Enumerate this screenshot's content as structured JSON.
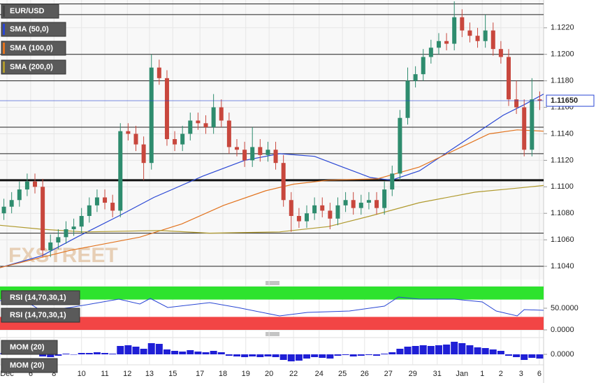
{
  "chart_data": {
    "type": "candlestick",
    "series": [
      {
        "name": "EUR/USD",
        "up_color": "#2e8c6e",
        "down_color": "#c8473d",
        "x": [
          1,
          3,
          5,
          7,
          9,
          11,
          13,
          15,
          17,
          19,
          21,
          23,
          25,
          27,
          29,
          31,
          33,
          35,
          37,
          39,
          41,
          43,
          45,
          47,
          49,
          51,
          53,
          55,
          57,
          59,
          61,
          63,
          65,
          67,
          69,
          71,
          73,
          75,
          77,
          79,
          81,
          83,
          85,
          87,
          89,
          91,
          93,
          95,
          97,
          99,
          101,
          103,
          105,
          107,
          109,
          111,
          113,
          115,
          117,
          119,
          121,
          123,
          125,
          127,
          129,
          131,
          133,
          135,
          137,
          139
        ],
        "open": [
          1.108,
          1.1085,
          1.109,
          1.1098,
          1.1104,
          1.11,
          1.1052,
          1.1058,
          1.1062,
          1.1068,
          1.107,
          1.1078,
          1.1086,
          1.1092,
          1.1088,
          1.1082,
          1.1142,
          1.114,
          1.1132,
          1.1118,
          1.119,
          1.1182,
          1.1136,
          1.1132,
          1.114,
          1.115,
          1.1148,
          1.1145,
          1.116,
          1.115,
          1.113,
          1.1128,
          1.112,
          1.113,
          1.1124,
          1.1128,
          1.1118,
          1.109,
          1.1078,
          1.1074,
          1.108,
          1.1086,
          1.1082,
          1.1076,
          1.1086,
          1.109,
          1.1084,
          1.1088,
          1.109,
          1.1084,
          1.1098,
          1.111,
          1.1152,
          1.118,
          1.1185,
          1.1198,
          1.1205,
          1.121,
          1.1208,
          1.1228,
          1.1218,
          1.1214,
          1.121,
          1.1218,
          1.1204,
          1.1198,
          1.1166,
          1.116,
          1.1128,
          1.1166
        ],
        "high": [
          1.1091,
          1.1096,
          1.1104,
          1.111,
          1.111,
          1.1106,
          1.1064,
          1.1068,
          1.1074,
          1.1076,
          1.1084,
          1.1092,
          1.1098,
          1.1098,
          1.1094,
          1.1148,
          1.1148,
          1.1146,
          1.1138,
          1.12,
          1.1196,
          1.1188,
          1.1142,
          1.1146,
          1.1156,
          1.1156,
          1.1154,
          1.117,
          1.1166,
          1.1156,
          1.1136,
          1.1134,
          1.1145,
          1.1136,
          1.1134,
          1.1134,
          1.1124,
          1.1096,
          1.1084,
          1.1086,
          1.1092,
          1.1092,
          1.1088,
          1.1092,
          1.1096,
          1.1096,
          1.1094,
          1.1096,
          1.1096,
          1.1104,
          1.1116,
          1.1158,
          1.119,
          1.1191,
          1.1204,
          1.1211,
          1.1216,
          1.1216,
          1.124,
          1.1234,
          1.1224,
          1.122,
          1.123,
          1.1224,
          1.121,
          1.1204,
          1.118,
          1.1166,
          1.1182,
          1.1172
        ],
        "low": [
          1.1075,
          1.108,
          1.1085,
          1.1093,
          1.1095,
          1.1047,
          1.1047,
          1.1053,
          1.1057,
          1.1063,
          1.1065,
          1.1073,
          1.1081,
          1.1083,
          1.1077,
          1.1077,
          1.1135,
          1.1127,
          1.1105,
          1.1113,
          1.1177,
          1.1131,
          1.1127,
          1.1127,
          1.1135,
          1.1143,
          1.114,
          1.114,
          1.1145,
          1.1125,
          1.1123,
          1.1115,
          1.1115,
          1.1119,
          1.1119,
          1.1113,
          1.1085,
          1.1066,
          1.1069,
          1.1069,
          1.1075,
          1.1077,
          1.1068,
          1.1071,
          1.1081,
          1.1079,
          1.1079,
          1.1083,
          1.1079,
          1.1079,
          1.1093,
          1.1105,
          1.1147,
          1.1175,
          1.118,
          1.1193,
          1.12,
          1.1203,
          1.1203,
          1.1213,
          1.1209,
          1.1205,
          1.1205,
          1.1199,
          1.1193,
          1.1161,
          1.1155,
          1.1123,
          1.1123,
          1.1158
        ],
        "close": [
          1.1085,
          1.109,
          1.1098,
          1.1104,
          1.11,
          1.1052,
          1.1058,
          1.1062,
          1.1068,
          1.107,
          1.1078,
          1.1086,
          1.1092,
          1.1088,
          1.1082,
          1.1142,
          1.114,
          1.1132,
          1.1118,
          1.119,
          1.1182,
          1.1136,
          1.1132,
          1.114,
          1.115,
          1.1148,
          1.1145,
          1.116,
          1.115,
          1.113,
          1.1128,
          1.112,
          1.113,
          1.1124,
          1.1128,
          1.1118,
          1.109,
          1.1078,
          1.1074,
          1.108,
          1.1086,
          1.1082,
          1.1076,
          1.1086,
          1.109,
          1.1084,
          1.1088,
          1.109,
          1.1084,
          1.1098,
          1.111,
          1.1152,
          1.118,
          1.1185,
          1.1198,
          1.1205,
          1.121,
          1.1208,
          1.1228,
          1.1218,
          1.1214,
          1.121,
          1.1218,
          1.1204,
          1.1198,
          1.1166,
          1.116,
          1.1128,
          1.1166,
          1.1165
        ]
      }
    ],
    "overlays": [
      {
        "name": "SMA (50,0)",
        "color": "#2946d4",
        "x": [
          0,
          10.8,
          19.8,
          30.6,
          39.6,
          52.2,
          63,
          72,
          81,
          88.2,
          95.4,
          100.8,
          108,
          115.2,
          122.4,
          129.6,
          135,
          140
        ],
        "values": [
          1.1039,
          1.1048,
          1.1062,
          1.1078,
          1.1092,
          1.1108,
          1.112,
          1.1125,
          1.1123,
          1.1115,
          1.1107,
          1.1105,
          1.1112,
          1.1126,
          1.114,
          1.1154,
          1.1162,
          1.117
        ]
      },
      {
        "name": "SMA (100,0)",
        "color": "#e2731e",
        "x": [
          0,
          18,
          36,
          46.8,
          57.6,
          68.4,
          75.6,
          84.6,
          97.2,
          108,
          118.8,
          126,
          133.2,
          140
        ],
        "values": [
          1.1039,
          1.1052,
          1.1062,
          1.1072,
          1.1086,
          1.1097,
          1.1102,
          1.1105,
          1.1106,
          1.1115,
          1.113,
          1.114,
          1.1143,
          1.1142
        ]
      },
      {
        "name": "SMA (200,0)",
        "color": "#b09a2e",
        "x": [
          0,
          10.8,
          21.6,
          41.4,
          54,
          72,
          84.6,
          95.4,
          108,
          122.4,
          133.2,
          140
        ],
        "values": [
          1.1071,
          1.1068,
          1.1066,
          1.1067,
          1.1065,
          1.1066,
          1.107,
          1.1078,
          1.1088,
          1.1096,
          1.1099,
          1.1101
        ]
      }
    ],
    "xlim": [
      0,
      140
    ],
    "ylim": [
      1.103,
      1.1241
    ],
    "xticks": [
      {
        "value": 1.8,
        "label": "Dec"
      },
      {
        "value": 7.9,
        "label": "6"
      },
      {
        "value": 13.9,
        "label": "8"
      },
      {
        "value": 21,
        "label": "10"
      },
      {
        "value": 27,
        "label": "11"
      },
      {
        "value": 32.8,
        "label": "12"
      },
      {
        "value": 38.5,
        "label": "13"
      },
      {
        "value": 44.5,
        "label": "15"
      },
      {
        "value": 51.5,
        "label": "17"
      },
      {
        "value": 57.4,
        "label": "18"
      },
      {
        "value": 63.3,
        "label": "19"
      },
      {
        "value": 69.3,
        "label": "20"
      },
      {
        "value": 75.6,
        "label": "22"
      },
      {
        "value": 82.2,
        "label": "24"
      },
      {
        "value": 88.2,
        "label": "25"
      },
      {
        "value": 93.9,
        "label": "26"
      },
      {
        "value": 100,
        "label": "27"
      },
      {
        "value": 106.3,
        "label": "29"
      },
      {
        "value": 112.6,
        "label": "31"
      },
      {
        "value": 119,
        "label": "Jan"
      },
      {
        "value": 124.2,
        "label": "1"
      },
      {
        "value": 129,
        "label": "2"
      },
      {
        "value": 134.2,
        "label": "3"
      },
      {
        "value": 138.9,
        "label": "6"
      }
    ],
    "yticks": [
      {
        "value": 1.122,
        "label": "1.1220"
      },
      {
        "value": 1.12,
        "label": "1.1200"
      },
      {
        "value": 1.118,
        "label": "1.1180"
      },
      {
        "value": 1.116,
        "label": "1.1160"
      },
      {
        "value": 1.114,
        "label": "1.1140"
      },
      {
        "value": 1.112,
        "label": "1.1120"
      },
      {
        "value": 1.11,
        "label": "1.1100"
      },
      {
        "value": 1.108,
        "label": "1.1080"
      },
      {
        "value": 1.106,
        "label": "1.1060"
      },
      {
        "value": 1.104,
        "label": "1.1040"
      }
    ],
    "grid": true,
    "levels": [
      1.1238,
      1.123,
      1.12,
      1.118,
      1.1145,
      1.1125,
      1.1065,
      1.104
    ],
    "major_level": 1.1105,
    "last_price": {
      "value": 1.1165,
      "label": "1.11650"
    },
    "watermark": "FXSTREET",
    "rsi": {
      "type": "line",
      "name": "RSI (14,70,30,1)",
      "color": "#2946d4",
      "x": [
        0,
        7.2,
        10.8,
        18,
        23.4,
        30.6,
        36,
        38.7,
        43.2,
        54,
        61.2,
        72,
        79.2,
        90,
        99,
        102.6,
        108,
        117,
        124.2,
        127.8,
        133.2,
        135,
        140
      ],
      "values": [
        67.7,
        62.9,
        43.5,
        51.6,
        59.7,
        71,
        59.7,
        72.6,
        51.6,
        62.9,
        51.6,
        32.3,
        40.3,
        43.5,
        54.8,
        75.8,
        71,
        71,
        64.5,
        43.5,
        32.3,
        46.8,
        45.2
      ],
      "ylim": [
        0,
        100
      ],
      "yticks": [
        {
          "value": 50,
          "label": "50.0000"
        },
        {
          "value": 0,
          "label": "0.0000"
        }
      ],
      "upper": 70,
      "lower": 30,
      "upper_color": "#2ee32e",
      "lower_color": "#f24545"
    },
    "mom": {
      "type": "bar",
      "name": "MOM (20)",
      "color": "#1f1fd6",
      "values": [
        0.0002,
        0.0003,
        0.0003,
        0.0004,
        0.0002,
        -0.0003,
        -0.0004,
        -0.0002,
        0.0001,
        0.0,
        0.0002,
        0.0002,
        0.0003,
        0.0002,
        0.0001,
        0.0012,
        0.0013,
        0.0011,
        0.0008,
        0.0016,
        0.0015,
        0.0007,
        0.0005,
        0.0004,
        0.0006,
        0.0004,
        0.0003,
        0.0005,
        0.0003,
        -0.0002,
        -0.0003,
        -0.0004,
        -0.0003,
        -0.0004,
        -0.0003,
        -0.0004,
        -0.0008,
        -0.001,
        -0.0009,
        -0.0006,
        -0.0004,
        -0.0005,
        -0.0006,
        -0.0002,
        -0.0001,
        -0.0003,
        -0.0002,
        -0.0001,
        -0.0002,
        0.0001,
        0.0003,
        0.0008,
        0.0011,
        0.0012,
        0.0013,
        0.0012,
        0.0013,
        0.0014,
        0.0018,
        0.0016,
        0.0013,
        0.001,
        0.0009,
        0.0007,
        0.0005,
        -0.0002,
        -0.0004,
        -0.0008,
        -0.0005,
        -0.0006
      ],
      "ylim": [
        -0.0015,
        0.0024
      ],
      "yticks": [
        {
          "value": 0,
          "label": "0.0000"
        }
      ]
    }
  }
}
